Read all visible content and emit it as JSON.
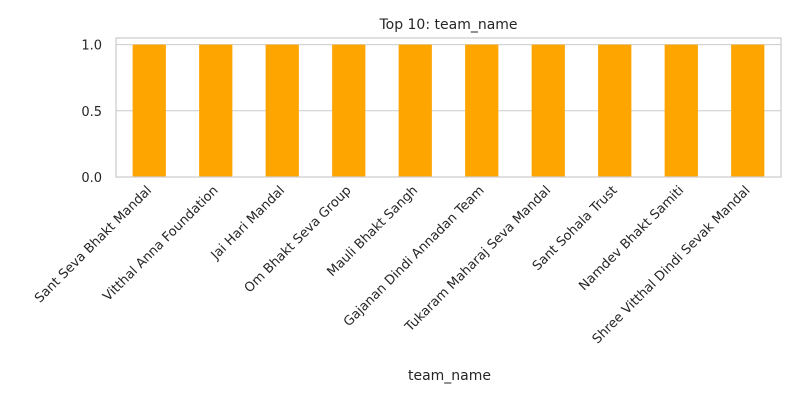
{
  "chart_data": {
    "type": "bar",
    "title": "Top 10: team_name",
    "xlabel": "team_name",
    "ylabel": "",
    "categories": [
      "Sant Seva Bhakt Mandal",
      "Vitthal Anna Foundation",
      "Jai Hari Mandal",
      "Om Bhakt Seva Group",
      "Mauli Bhakt Sangh",
      "Gajanan Dindi Annadan Team",
      "Tukaram Maharaj Seva Mandal",
      "Sant Sohala Trust",
      "Namdev Bhakt Samiti",
      "Shree Vitthal Dindi Sevak Mandal"
    ],
    "values": [
      1,
      1,
      1,
      1,
      1,
      1,
      1,
      1,
      1,
      1
    ],
    "ylim": [
      0,
      1.05
    ],
    "yticks": [
      "0.0",
      "0.5",
      "1.0"
    ],
    "grid": true,
    "bar_color": "#FFA500",
    "grid_color": "#cccccc",
    "axis_color": "#cccccc",
    "text_color": "#262626"
  }
}
